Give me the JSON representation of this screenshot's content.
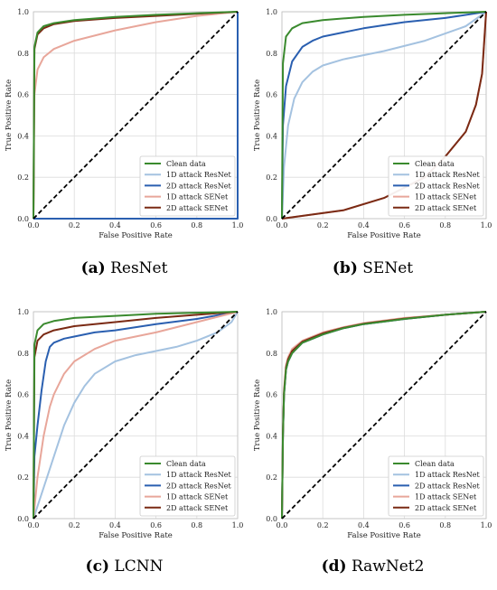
{
  "chart_data": [
    {
      "type": "line",
      "caption_letter": "(a)",
      "caption_text": "ResNet",
      "xlabel": "False Positive Rate",
      "ylabel": "True Positive Rate",
      "xlim": [
        0,
        1
      ],
      "ylim": [
        0,
        1
      ],
      "xticks": [
        "0.0",
        "0.2",
        "0.4",
        "0.6",
        "0.8",
        "1.0"
      ],
      "yticks": [
        "0.0",
        "0.2",
        "0.4",
        "0.6",
        "0.8",
        "1.0"
      ],
      "grid": true,
      "legend_position": "lower-right",
      "diagonal": true,
      "series": [
        {
          "name": "Clean data",
          "color": "#3a8a2e",
          "x": [
            0,
            0.005,
            0.02,
            0.05,
            0.1,
            0.2,
            0.4,
            0.6,
            0.8,
            1.0
          ],
          "y": [
            0,
            0.83,
            0.9,
            0.93,
            0.945,
            0.96,
            0.975,
            0.985,
            0.993,
            1.0
          ]
        },
        {
          "name": "1D attack ResNet",
          "color": "#a4c2e0",
          "x": [
            0,
            1,
            1
          ],
          "y": [
            0,
            0,
            1
          ]
        },
        {
          "name": "2D attack ResNet",
          "color": "#2a5fb0",
          "x": [
            0,
            1,
            1
          ],
          "y": [
            0,
            0,
            1
          ]
        },
        {
          "name": "1D attack SENet",
          "color": "#e8a69a",
          "x": [
            0,
            0.005,
            0.02,
            0.05,
            0.1,
            0.2,
            0.4,
            0.6,
            0.8,
            1.0
          ],
          "y": [
            0,
            0.6,
            0.72,
            0.78,
            0.82,
            0.86,
            0.91,
            0.95,
            0.98,
            1.0
          ]
        },
        {
          "name": "2D attack SENet",
          "color": "#7a2a14",
          "x": [
            0,
            0.005,
            0.02,
            0.05,
            0.1,
            0.2,
            0.4,
            0.6,
            0.8,
            1.0
          ],
          "y": [
            0,
            0.82,
            0.89,
            0.92,
            0.94,
            0.955,
            0.97,
            0.98,
            0.99,
            1.0
          ]
        }
      ]
    },
    {
      "type": "line",
      "caption_letter": "(b)",
      "caption_text": "SENet",
      "xlabel": "False Positive Rate",
      "ylabel": "True Positive Rate",
      "xlim": [
        0,
        1
      ],
      "ylim": [
        0,
        1
      ],
      "xticks": [
        "0.0",
        "0.2",
        "0.4",
        "0.6",
        "0.8",
        "1.0"
      ],
      "yticks": [
        "0.0",
        "0.2",
        "0.4",
        "0.6",
        "0.8",
        "1.0"
      ],
      "grid": true,
      "legend_position": "lower-right",
      "diagonal": true,
      "series": [
        {
          "name": "Clean data",
          "color": "#3a8a2e",
          "x": [
            0,
            0.005,
            0.02,
            0.05,
            0.1,
            0.2,
            0.4,
            0.6,
            0.8,
            1.0
          ],
          "y": [
            0,
            0.75,
            0.88,
            0.92,
            0.945,
            0.96,
            0.975,
            0.985,
            0.993,
            1.0
          ]
        },
        {
          "name": "1D attack ResNet",
          "color": "#a4c2e0",
          "x": [
            0,
            0.01,
            0.03,
            0.06,
            0.1,
            0.15,
            0.2,
            0.3,
            0.5,
            0.7,
            0.9,
            1.0
          ],
          "y": [
            0,
            0.25,
            0.45,
            0.58,
            0.66,
            0.71,
            0.74,
            0.77,
            0.81,
            0.86,
            0.93,
            1.0
          ]
        },
        {
          "name": "2D attack ResNet",
          "color": "#2a5fb0",
          "x": [
            0,
            0.005,
            0.02,
            0.05,
            0.1,
            0.15,
            0.2,
            0.3,
            0.4,
            0.6,
            0.8,
            1.0
          ],
          "y": [
            0,
            0.45,
            0.64,
            0.76,
            0.83,
            0.86,
            0.88,
            0.9,
            0.92,
            0.95,
            0.97,
            1.0
          ]
        },
        {
          "name": "1D attack SENet",
          "color": "#e8a69a",
          "x": [
            0,
            0.3,
            0.5,
            0.7,
            0.8,
            0.9,
            0.95,
            0.98,
            1.0
          ],
          "y": [
            0,
            0.04,
            0.1,
            0.2,
            0.3,
            0.42,
            0.55,
            0.7,
            1.0
          ]
        },
        {
          "name": "2D attack SENet",
          "color": "#7a2a14",
          "x": [
            0,
            0.3,
            0.5,
            0.7,
            0.8,
            0.9,
            0.95,
            0.98,
            1.0
          ],
          "y": [
            0,
            0.04,
            0.1,
            0.2,
            0.3,
            0.42,
            0.55,
            0.7,
            1.0
          ]
        }
      ]
    },
    {
      "type": "line",
      "caption_letter": "(c)",
      "caption_text": "LCNN",
      "xlabel": "False Positive Rate",
      "ylabel": "True Positive Rate",
      "xlim": [
        0,
        1
      ],
      "ylim": [
        0,
        1
      ],
      "xticks": [
        "0.0",
        "0.2",
        "0.4",
        "0.6",
        "0.8",
        "1.0"
      ],
      "yticks": [
        "0.0",
        "0.2",
        "0.4",
        "0.6",
        "0.8",
        "1.0"
      ],
      "grid": true,
      "legend_position": "lower-right",
      "diagonal": true,
      "series": [
        {
          "name": "Clean data",
          "color": "#3a8a2e",
          "x": [
            0,
            0.005,
            0.02,
            0.05,
            0.1,
            0.2,
            0.4,
            0.6,
            0.8,
            1.0
          ],
          "y": [
            0,
            0.84,
            0.91,
            0.94,
            0.955,
            0.97,
            0.98,
            0.99,
            0.995,
            1.0
          ]
        },
        {
          "name": "1D attack ResNet",
          "color": "#a4c2e0",
          "x": [
            0,
            0.05,
            0.1,
            0.15,
            0.2,
            0.25,
            0.3,
            0.4,
            0.5,
            0.6,
            0.7,
            0.8,
            0.9,
            0.97,
            1.0
          ],
          "y": [
            0,
            0.15,
            0.3,
            0.45,
            0.56,
            0.64,
            0.7,
            0.76,
            0.79,
            0.81,
            0.83,
            0.86,
            0.9,
            0.95,
            1.0
          ]
        },
        {
          "name": "2D attack ResNet",
          "color": "#2a5fb0",
          "x": [
            0,
            0.005,
            0.02,
            0.04,
            0.06,
            0.08,
            0.1,
            0.15,
            0.2,
            0.3,
            0.4,
            0.6,
            0.8,
            1.0
          ],
          "y": [
            0,
            0.3,
            0.45,
            0.62,
            0.76,
            0.83,
            0.85,
            0.87,
            0.88,
            0.9,
            0.91,
            0.94,
            0.965,
            1.0
          ]
        },
        {
          "name": "1D attack SENet",
          "color": "#e8a69a",
          "x": [
            0,
            0.02,
            0.05,
            0.08,
            0.1,
            0.15,
            0.2,
            0.3,
            0.4,
            0.5,
            0.6,
            0.8,
            1.0
          ],
          "y": [
            0,
            0.2,
            0.4,
            0.54,
            0.6,
            0.7,
            0.76,
            0.82,
            0.86,
            0.88,
            0.9,
            0.95,
            1.0
          ]
        },
        {
          "name": "2D attack SENet",
          "color": "#7a2a14",
          "x": [
            0,
            0.005,
            0.02,
            0.05,
            0.1,
            0.2,
            0.4,
            0.6,
            0.8,
            1.0
          ],
          "y": [
            0,
            0.78,
            0.86,
            0.89,
            0.91,
            0.93,
            0.95,
            0.97,
            0.985,
            1.0
          ]
        }
      ]
    },
    {
      "type": "line",
      "caption_letter": "(d)",
      "caption_text": "RawNet2",
      "xlabel": "False Positive Rate",
      "ylabel": "True Positive Rate",
      "xlim": [
        0,
        1
      ],
      "ylim": [
        0,
        1
      ],
      "xticks": [
        "0.0",
        "0.2",
        "0.4",
        "0.6",
        "0.8",
        "1.0"
      ],
      "yticks": [
        "0.0",
        "0.2",
        "0.4",
        "0.6",
        "0.8",
        "1.0"
      ],
      "grid": true,
      "legend_position": "lower-right",
      "diagonal": true,
      "series": [
        {
          "name": "Clean data",
          "color": "#3a8a2e",
          "x": [
            0,
            0.005,
            0.01,
            0.02,
            0.03,
            0.05,
            0.1,
            0.15,
            0.2,
            0.3,
            0.4,
            0.6,
            0.8,
            1.0
          ],
          "y": [
            0,
            0.4,
            0.6,
            0.72,
            0.76,
            0.8,
            0.85,
            0.87,
            0.89,
            0.92,
            0.94,
            0.965,
            0.985,
            1.0
          ]
        },
        {
          "name": "1D attack ResNet",
          "color": "#a4c2e0",
          "x": [
            0,
            0.005,
            0.01,
            0.02,
            0.03,
            0.05,
            0.1,
            0.15,
            0.2,
            0.3,
            0.4,
            0.6,
            0.8,
            1.0
          ],
          "y": [
            0,
            0.4,
            0.6,
            0.72,
            0.76,
            0.8,
            0.85,
            0.87,
            0.89,
            0.92,
            0.94,
            0.965,
            0.985,
            1.0
          ]
        },
        {
          "name": "2D attack ResNet",
          "color": "#2a5fb0",
          "x": [
            0,
            0.005,
            0.01,
            0.02,
            0.03,
            0.05,
            0.1,
            0.15,
            0.2,
            0.3,
            0.4,
            0.6,
            0.8,
            1.0
          ],
          "y": [
            0,
            0.4,
            0.6,
            0.72,
            0.76,
            0.8,
            0.85,
            0.87,
            0.89,
            0.92,
            0.94,
            0.965,
            0.985,
            1.0
          ]
        },
        {
          "name": "1D attack SENet",
          "color": "#e8a69a",
          "x": [
            0,
            0.005,
            0.01,
            0.02,
            0.03,
            0.05,
            0.1,
            0.15,
            0.2,
            0.3,
            0.4,
            0.6,
            0.8,
            1.0
          ],
          "y": [
            0,
            0.42,
            0.62,
            0.74,
            0.78,
            0.82,
            0.86,
            0.88,
            0.9,
            0.925,
            0.945,
            0.97,
            0.985,
            1.0
          ]
        },
        {
          "name": "2D attack SENet",
          "color": "#7a2a14",
          "x": [
            0,
            0.005,
            0.01,
            0.02,
            0.03,
            0.05,
            0.1,
            0.15,
            0.2,
            0.3,
            0.4,
            0.6,
            0.8,
            1.0
          ],
          "y": [
            0,
            0.41,
            0.61,
            0.73,
            0.77,
            0.81,
            0.855,
            0.875,
            0.895,
            0.922,
            0.942,
            0.967,
            0.985,
            1.0
          ]
        }
      ]
    }
  ]
}
